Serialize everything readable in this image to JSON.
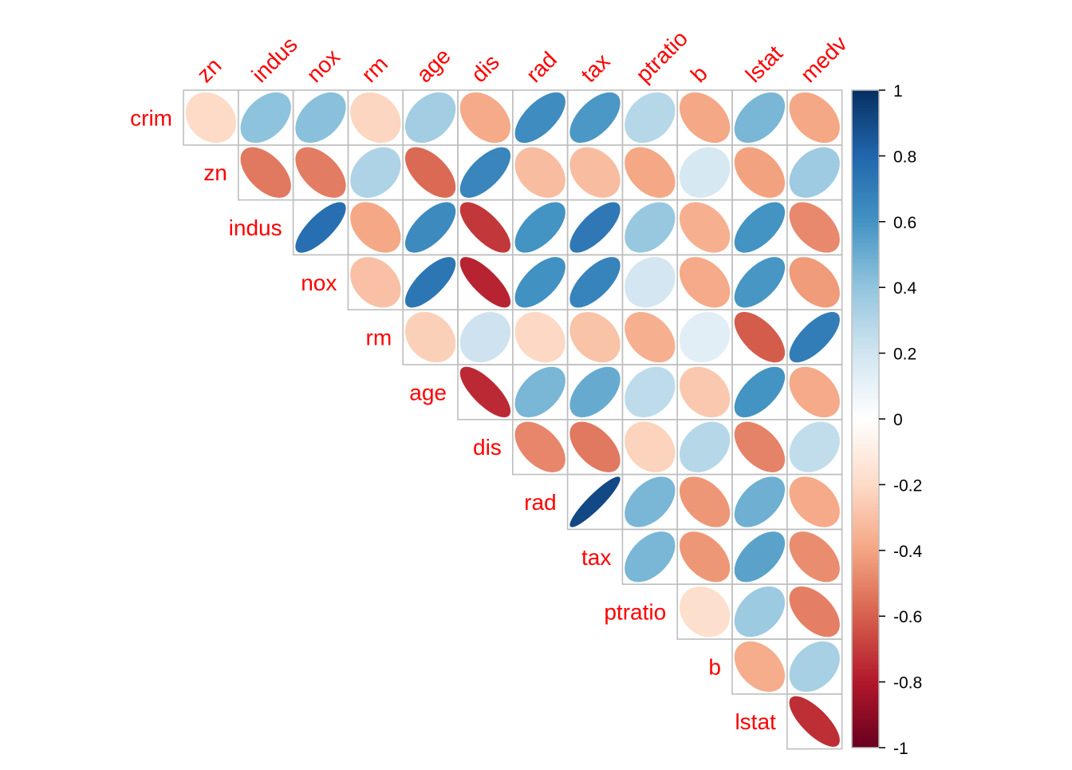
{
  "chart_data": {
    "type": "heatmap",
    "subtype": "correlation-ellipse-upper",
    "variables": [
      "crim",
      "zn",
      "indus",
      "nox",
      "rm",
      "age",
      "dis",
      "rad",
      "tax",
      "ptratio",
      "b",
      "lstat",
      "medv"
    ],
    "row_labels": [
      "crim",
      "zn",
      "indus",
      "nox",
      "rm",
      "age",
      "dis",
      "rad",
      "tax",
      "ptratio",
      "b",
      "lstat"
    ],
    "col_labels": [
      "zn",
      "indus",
      "nox",
      "rm",
      "age",
      "dis",
      "rad",
      "tax",
      "ptratio",
      "b",
      "lstat",
      "medv"
    ],
    "matrix": [
      [
        1,
        -0.2,
        0.41,
        0.42,
        -0.22,
        0.35,
        -0.38,
        0.63,
        0.58,
        0.29,
        -0.39,
        0.46,
        -0.39
      ],
      [
        -0.2,
        1,
        -0.53,
        -0.52,
        0.31,
        -0.57,
        0.66,
        -0.31,
        -0.31,
        -0.39,
        0.18,
        -0.41,
        0.36
      ],
      [
        0.41,
        -0.53,
        1,
        0.76,
        -0.39,
        0.64,
        -0.71,
        0.6,
        0.72,
        0.38,
        -0.36,
        0.6,
        -0.48
      ],
      [
        0.42,
        -0.52,
        0.76,
        1,
        -0.3,
        0.73,
        -0.77,
        0.61,
        0.67,
        0.19,
        -0.38,
        0.59,
        -0.43
      ],
      [
        -0.22,
        0.31,
        -0.39,
        -0.3,
        1,
        -0.24,
        0.21,
        -0.21,
        -0.29,
        -0.36,
        0.13,
        -0.61,
        0.7
      ],
      [
        0.35,
        -0.57,
        0.64,
        0.73,
        -0.24,
        1,
        -0.75,
        0.46,
        0.51,
        0.26,
        -0.27,
        0.6,
        -0.38
      ],
      [
        -0.38,
        0.66,
        -0.71,
        -0.77,
        0.21,
        -0.75,
        1,
        -0.49,
        -0.53,
        -0.23,
        0.29,
        -0.5,
        0.25
      ],
      [
        0.63,
        -0.31,
        0.6,
        0.61,
        -0.21,
        0.46,
        -0.49,
        1,
        0.91,
        0.46,
        -0.44,
        0.49,
        -0.38
      ],
      [
        0.58,
        -0.31,
        0.72,
        0.67,
        -0.29,
        0.51,
        -0.53,
        0.91,
        1,
        0.46,
        -0.44,
        0.54,
        -0.47
      ],
      [
        0.29,
        -0.39,
        0.38,
        0.19,
        -0.36,
        0.26,
        -0.23,
        0.46,
        0.46,
        1,
        -0.18,
        0.37,
        -0.51
      ],
      [
        -0.39,
        0.18,
        -0.36,
        -0.38,
        0.13,
        -0.27,
        0.29,
        -0.44,
        -0.44,
        -0.18,
        1,
        -0.37,
        0.33
      ],
      [
        0.46,
        -0.41,
        0.6,
        0.59,
        -0.61,
        0.6,
        -0.5,
        0.49,
        0.54,
        0.37,
        -0.37,
        1,
        -0.74
      ],
      [
        -0.39,
        0.36,
        -0.48,
        -0.43,
        0.7,
        -0.38,
        0.25,
        -0.38,
        -0.47,
        -0.51,
        0.33,
        -0.74,
        1
      ]
    ],
    "colorbar_ticks": [
      "1",
      "0.8",
      "0.6",
      "0.4",
      "0.2",
      "0",
      "-0.2",
      "-0.4",
      "-0.6",
      "-0.8",
      "-1"
    ],
    "colorbar_range": [
      -1,
      1
    ],
    "colors": {
      "label": "#ff0000",
      "grid": "#bebebe",
      "scale": [
        "#67001f",
        "#b2182b",
        "#d6604d",
        "#f4a582",
        "#fddbc7",
        "#ffffff",
        "#d1e5f0",
        "#92c5de",
        "#4393c3",
        "#2166ac",
        "#053061"
      ]
    }
  }
}
